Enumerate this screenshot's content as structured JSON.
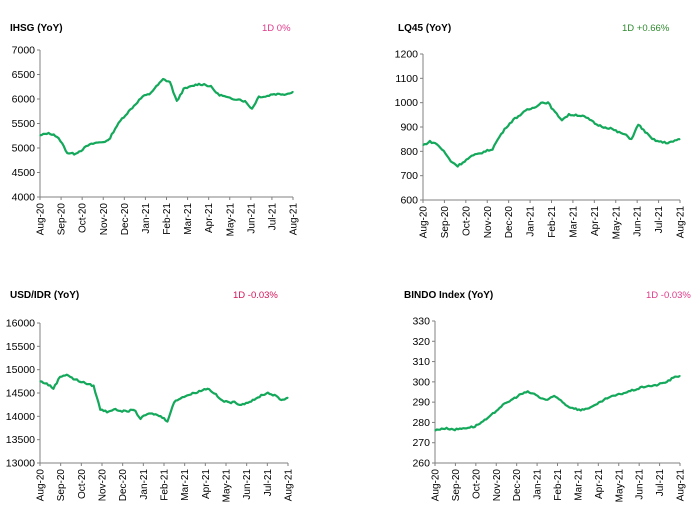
{
  "colors": {
    "line": "#14a85b",
    "axis": "#808080",
    "change_red": "#d4145a",
    "change_pink": "#e0398a",
    "change_green": "#2e8b2e"
  },
  "chart_data": [
    {
      "type": "line",
      "title": "IHSG (YoY)",
      "change_label": "1D 0%",
      "change_color": "#e0398a",
      "ylim": [
        4000,
        7000
      ],
      "yticks": [
        7000,
        6500,
        6000,
        5500,
        5000,
        4500,
        4000
      ],
      "xtick_labels": [
        "Aug-20",
        "Sep-20",
        "Oct-20",
        "Nov-20",
        "Dec-20",
        "Jan-21",
        "Feb-21",
        "Mar-21",
        "Apr-21",
        "May-21",
        "Jun-21",
        "Jul-21",
        "Aug-21"
      ],
      "grid": false,
      "values": [
        5250,
        5300,
        5280,
        5150,
        4900,
        4880,
        4950,
        5050,
        5100,
        5120,
        5150,
        5400,
        5600,
        5750,
        5900,
        6050,
        6100,
        6250,
        6400,
        6350,
        5950,
        6200,
        6250,
        6300,
        6300,
        6250,
        6100,
        6050,
        6000,
        6000,
        5950,
        5800,
        6050,
        6050,
        6100,
        6100,
        6100,
        6150
      ]
    },
    {
      "type": "line",
      "title": "LQ45 (YoY)",
      "change_label": "1D +0.66%",
      "change_color": "#2e8b2e",
      "ylim": [
        600,
        1200
      ],
      "yticks": [
        1200,
        1100,
        1000,
        900,
        800,
        700,
        600
      ],
      "xtick_labels": [
        "Aug-20",
        "Sep-20",
        "Oct-20",
        "Nov-20",
        "Dec-20",
        "Jan-21",
        "Feb-21",
        "Mar-21",
        "Apr-21",
        "May-21",
        "Jun-21",
        "Jul-21",
        "Aug-21"
      ],
      "grid": false,
      "values": [
        825,
        840,
        830,
        800,
        760,
        740,
        760,
        780,
        790,
        800,
        810,
        860,
        900,
        930,
        950,
        970,
        980,
        1000,
        1000,
        960,
        930,
        950,
        950,
        945,
        930,
        910,
        900,
        895,
        880,
        870,
        850,
        910,
        880,
        850,
        840,
        835,
        840,
        850
      ]
    },
    {
      "type": "line",
      "title": "USD/IDR  (YoY)",
      "change_label": "1D -0.03%",
      "change_color": "#d4145a",
      "ylim": [
        13000,
        16000
      ],
      "yticks": [
        16000,
        15500,
        15000,
        14500,
        14000,
        13500,
        13000
      ],
      "xtick_labels": [
        "Aug-20",
        "Sep-20",
        "Oct-20",
        "Nov-20",
        "Dec-20",
        "Jan-21",
        "Feb-21",
        "Mar-21",
        "Apr-21",
        "May-21",
        "Jun-21",
        "Jul-21",
        "Aug-21"
      ],
      "grid": false,
      "values": [
        14750,
        14700,
        14600,
        14850,
        14900,
        14800,
        14750,
        14700,
        14650,
        14150,
        14100,
        14150,
        14120,
        14100,
        14150,
        13950,
        14050,
        14050,
        14000,
        13900,
        14300,
        14400,
        14450,
        14500,
        14550,
        14600,
        14500,
        14350,
        14300,
        14300,
        14250,
        14300,
        14350,
        14450,
        14500,
        14450,
        14350,
        14400
      ]
    },
    {
      "type": "line",
      "title": "BINDO Index (YoY)",
      "change_label": "1D -0.03%",
      "change_color": "#e0398a",
      "ylim": [
        260,
        330
      ],
      "yticks": [
        330,
        320,
        310,
        300,
        290,
        280,
        270,
        260
      ],
      "xtick_labels": [
        "Aug-20",
        "Sep-20",
        "Oct-20",
        "Nov-20",
        "Dec-20",
        "Jan-21",
        "Feb-21",
        "Mar-21",
        "Apr-21",
        "May-21",
        "Jun-21",
        "Jul-21",
        "Aug-21"
      ],
      "grid": false,
      "values": [
        276,
        277,
        277,
        276.5,
        277,
        277.5,
        278,
        280,
        282,
        285,
        288,
        290,
        292,
        294,
        295,
        294,
        292,
        291,
        293,
        291,
        288,
        287,
        286,
        287,
        288,
        290,
        292,
        293,
        294,
        295,
        296,
        297,
        298,
        298,
        299,
        300,
        302,
        303
      ]
    }
  ]
}
